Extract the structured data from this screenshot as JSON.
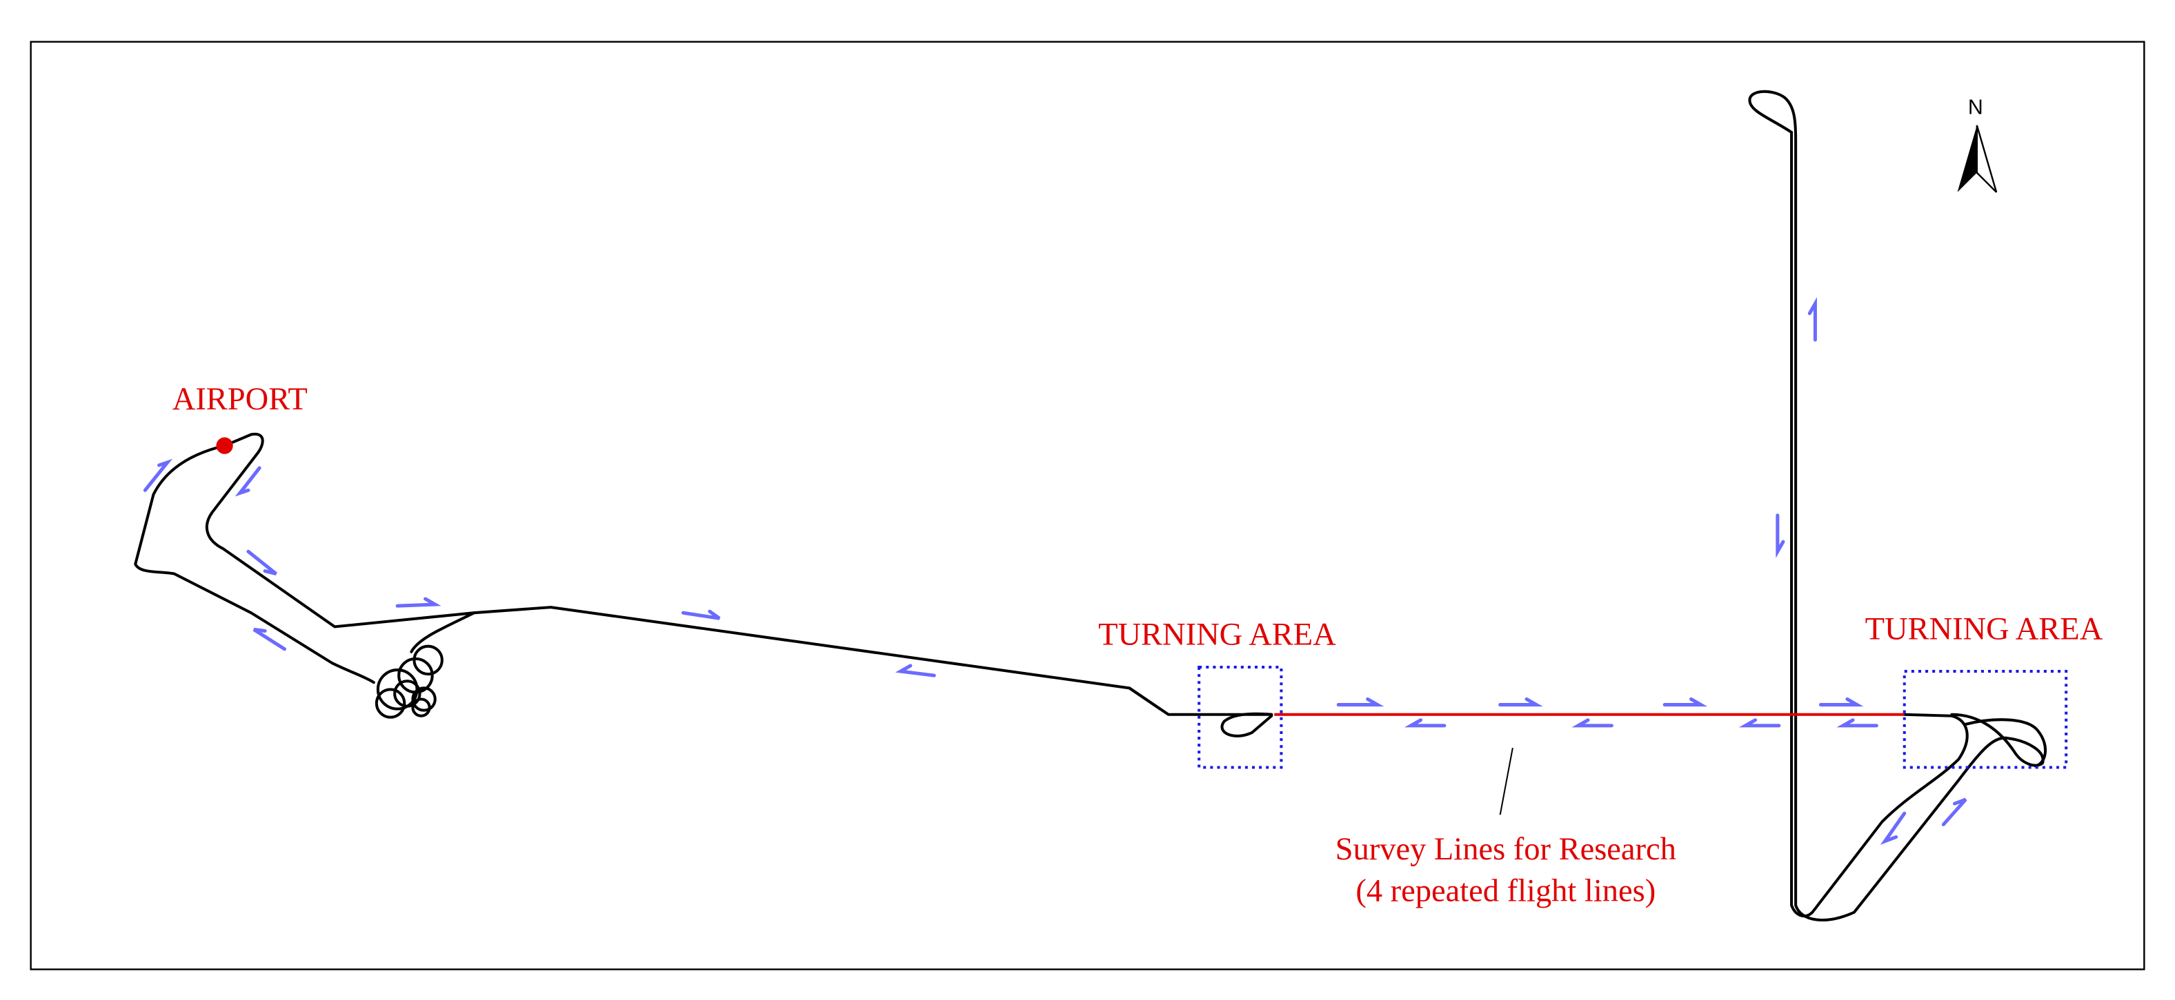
{
  "labels": {
    "airport": "AIRPORT",
    "turning_area_1": "TURNING AREA",
    "turning_area_2": "TURNING AREA",
    "survey_line_1": "Survey Lines for Research",
    "survey_line_2": "(4 repeated flight lines)",
    "north": "N"
  }
}
